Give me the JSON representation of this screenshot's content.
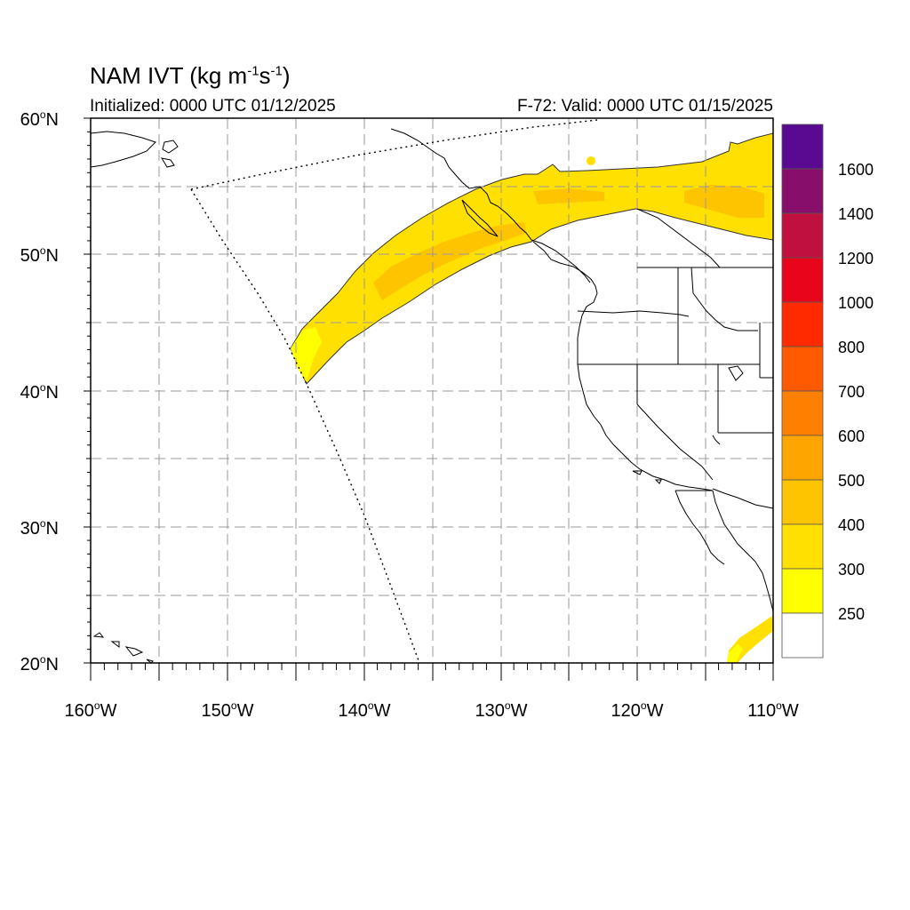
{
  "title": {
    "main": "NAM IVT (kg m",
    "sup1": "-1",
    "mid": "s",
    "sup2": "-1",
    "end": ")"
  },
  "subtitle_left": "Initialized: 0000 UTC 01/12/2025",
  "subtitle_right": "F-72: Valid: 0000 UTC 01/15/2025",
  "lat_labels": [
    "60",
    "50",
    "40",
    "30",
    "20"
  ],
  "lat_suffix": "N",
  "lon_labels": [
    "160",
    "150",
    "140",
    "130",
    "120",
    "110"
  ],
  "lon_suffix": "W",
  "degree_symbol": "o",
  "colorbar": {
    "labels": [
      "1600",
      "1400",
      "1200",
      "1000",
      "800",
      "700",
      "600",
      "500",
      "400",
      "300",
      "250"
    ],
    "colors_top_to_bottom": [
      "#5a0a91",
      "#870e6b",
      "#c0103f",
      "#e8051b",
      "#ff2a00",
      "#ff5a00",
      "#ff7f00",
      "#ffa500",
      "#ffc400",
      "#ffe000",
      "#ffff00",
      "#ffffff"
    ]
  },
  "ivt_colors": {
    "band_250_300": "#ffff00",
    "band_300_400": "#ffe000",
    "band_400_500": "#ffc400",
    "band_500_600": "#ffa500"
  }
}
